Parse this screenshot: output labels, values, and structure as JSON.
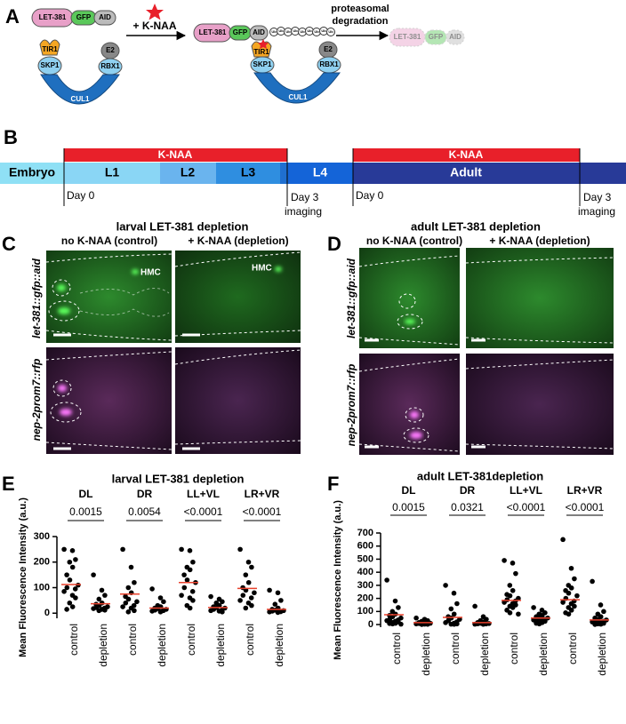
{
  "panel_a": {
    "label": "A",
    "protein": [
      "LET-381",
      "GFP",
      "AID"
    ],
    "treatment": "+ K-NAA",
    "complex": [
      "TIR1",
      "SKP1",
      "E2",
      "RBX1",
      "CUL1"
    ],
    "ub": "Ub",
    "step": [
      "proteasomal",
      "degradation"
    ]
  },
  "panel_b": {
    "label": "B",
    "treatment": "K-NAA",
    "stages": [
      "Embryo",
      "L1",
      "L2",
      "L3",
      "L4",
      "Adult"
    ],
    "day0": "Day 0",
    "day3": [
      "Day 3",
      "imaging"
    ]
  },
  "panel_c": {
    "label": "C",
    "title": "larval LET-381 depletion",
    "columns": [
      "no K-NAA (control)",
      "+ K-NAA (depletion)"
    ],
    "rows": [
      "let-381::gfp::aid",
      "nep-2prom7::rfp"
    ],
    "cell": "HMC"
  },
  "panel_d": {
    "label": "D",
    "title": "adult LET-381 depletion",
    "columns": [
      "no K-NAA (control)",
      "+ K-NAA (depletion)"
    ],
    "rows": [
      "let-381::gfp::aid",
      "nep-2prom7::rfp"
    ]
  },
  "chart_data": [
    {
      "type": "scatter",
      "panel": "E",
      "title": "larval LET-381 depletion",
      "ylabel": "Mean Fluorescence Intensity (a.u.)",
      "groups": [
        "DL",
        "DR",
        "LL+VL",
        "LR+VR"
      ],
      "p_values": [
        "0.0015",
        "0.0054",
        "<0.0001",
        "<0.0001"
      ],
      "categories": [
        "control",
        "depletion",
        "control",
        "depletion",
        "control",
        "depletion",
        "control",
        "depletion"
      ],
      "values": [
        [
          250,
          245,
          210,
          200,
          180,
          150,
          130,
          110,
          100,
          95,
          85,
          70,
          60,
          40,
          25,
          15
        ],
        [
          150,
          90,
          70,
          55,
          40,
          35,
          30,
          25,
          22,
          20,
          18,
          15,
          12,
          10
        ],
        [
          250,
          180,
          120,
          100,
          80,
          65,
          55,
          45,
          40,
          30,
          25,
          20,
          10,
          5
        ],
        [
          95,
          60,
          45,
          30,
          25,
          20,
          18,
          15,
          12,
          10,
          8,
          5
        ],
        [
          250,
          245,
          200,
          180,
          170,
          150,
          130,
          120,
          100,
          85,
          70,
          60,
          50,
          30,
          20
        ],
        [
          65,
          55,
          45,
          40,
          30,
          25,
          22,
          20,
          15,
          12,
          10,
          8,
          5
        ],
        [
          250,
          200,
          180,
          150,
          120,
          100,
          90,
          80,
          70,
          60,
          50,
          40,
          30,
          20
        ],
        [
          90,
          80,
          50,
          35,
          20,
          15,
          12,
          10,
          8,
          6,
          5,
          3
        ]
      ],
      "means": [
        112,
        37,
        75,
        20,
        120,
        22,
        97,
        15
      ],
      "color": "#000000",
      "mean_color": "#e8412c",
      "ylim": [
        -20,
        300
      ],
      "yticks": [
        0,
        100,
        200,
        300
      ]
    },
    {
      "type": "scatter",
      "panel": "F",
      "title": "adult LET-381depletion",
      "ylabel": "Mean Fluorescence Intensity (a.u.)",
      "groups": [
        "DL",
        "DR",
        "LL+VL",
        "LR+VR"
      ],
      "p_values": [
        "0.0015",
        "0.0321",
        "<0.0001",
        "<0.0001"
      ],
      "categories": [
        "control",
        "depletion",
        "control",
        "depletion",
        "control",
        "depletion",
        "control",
        "depletion"
      ],
      "values": [
        [
          340,
          180,
          130,
          100,
          80,
          70,
          60,
          50,
          40,
          35,
          30,
          25,
          20,
          15,
          10,
          8,
          5,
          3
        ],
        [
          50,
          40,
          30,
          25,
          20,
          15,
          12,
          10,
          8,
          6,
          5,
          3,
          2,
          1
        ],
        [
          300,
          240,
          160,
          120,
          80,
          60,
          50,
          40,
          30,
          20,
          15,
          10,
          5,
          3,
          2
        ],
        [
          140,
          60,
          40,
          30,
          20,
          15,
          10,
          8,
          6,
          5,
          3,
          2
        ],
        [
          490,
          470,
          390,
          300,
          260,
          230,
          220,
          200,
          190,
          180,
          170,
          160,
          150,
          140,
          130,
          110,
          90,
          80
        ],
        [
          130,
          110,
          90,
          80,
          70,
          60,
          55,
          50,
          45,
          40,
          35,
          30,
          25,
          20,
          15,
          10,
          5
        ],
        [
          650,
          430,
          350,
          300,
          280,
          260,
          240,
          220,
          200,
          180,
          170,
          160,
          140,
          130,
          110,
          90,
          80
        ],
        [
          330,
          150,
          100,
          80,
          60,
          50,
          40,
          35,
          30,
          25,
          20,
          15,
          10,
          5,
          3,
          1
        ]
      ],
      "means": [
        75,
        15,
        55,
        15,
        185,
        50,
        190,
        35
      ],
      "color": "#000000",
      "mean_color": "#e8412c",
      "ylim": [
        -20,
        700
      ],
      "yticks": [
        0,
        100,
        200,
        300,
        400,
        500,
        600,
        700
      ]
    }
  ]
}
